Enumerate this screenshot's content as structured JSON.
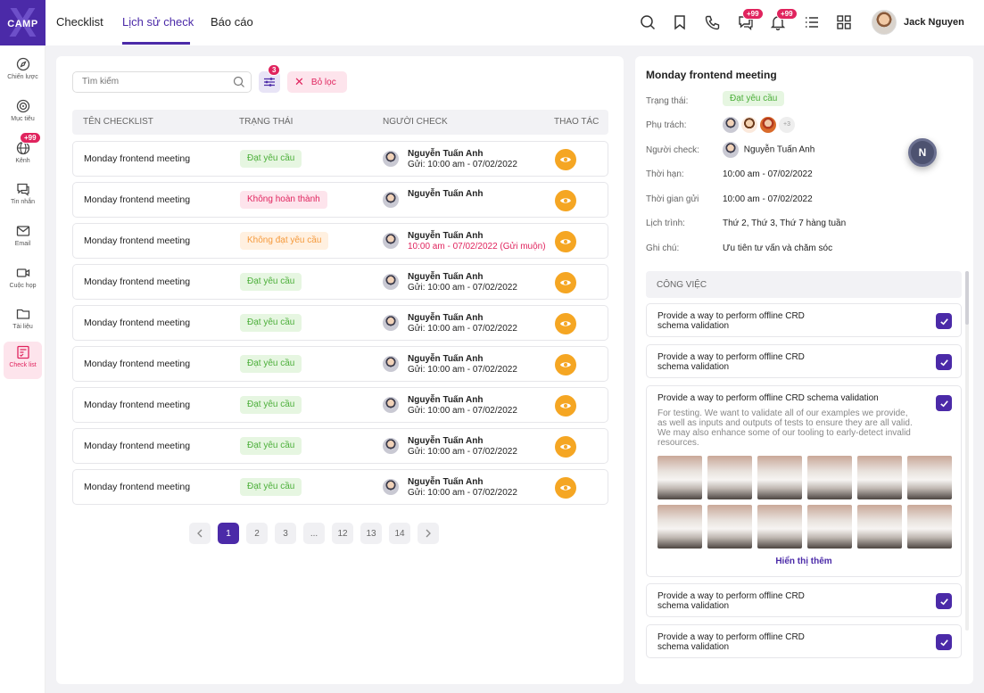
{
  "brand": {
    "logo_top": "CAMP",
    "logo_x": "X"
  },
  "sidebar": {
    "items": [
      {
        "label": "Chiến lược",
        "icon": "compass-icon"
      },
      {
        "label": "Mục tiêu",
        "icon": "target-icon"
      },
      {
        "label": "Kênh",
        "icon": "globe-icon",
        "badge": "+99"
      },
      {
        "label": "Tin nhắn",
        "icon": "chat-icon"
      },
      {
        "label": "Email",
        "icon": "mail-icon"
      },
      {
        "label": "Cuộc họp",
        "icon": "video-icon"
      },
      {
        "label": "Tài liệu",
        "icon": "folder-icon"
      },
      {
        "label": "Check list",
        "icon": "checklist-icon",
        "active": true
      }
    ]
  },
  "header": {
    "tabs": [
      "Checklist",
      "Lịch sử check",
      "Báo cáo"
    ],
    "active_tab": 1,
    "message_badge": "+99",
    "notification_badge": "+99",
    "user_name": "Jack Nguyen"
  },
  "toolbar": {
    "search_placeholder": "Tìm kiếm",
    "filter_count": "3",
    "clear_label": "Bỏ lọc"
  },
  "table": {
    "columns": [
      "TÊN CHECKLIST",
      "TRẠNG THÁI",
      "NGƯỜI CHECK",
      "THAO TÁC"
    ],
    "rows": [
      {
        "name": "Monday frontend meeting",
        "status": "Đạt yêu cầu",
        "checker": "Nguyễn Tuấn Anh",
        "sent": "Gửi: 10:00 am - 07/02/2022"
      },
      {
        "name": "Monday frontend meeting",
        "status": "Không hoàn thành",
        "checker": "Nguyễn Tuấn Anh",
        "sent": ""
      },
      {
        "name": "Monday frontend meeting",
        "status": "Không đạt yêu cầu",
        "checker": "Nguyễn Tuấn Anh",
        "sent": "10:00 am - 07/02/2022 (Gửi muộn)"
      },
      {
        "name": "Monday frontend meeting",
        "status": "Đạt yêu cầu",
        "checker": "Nguyễn Tuấn Anh",
        "sent": "Gửi: 10:00 am - 07/02/2022"
      },
      {
        "name": "Monday frontend meeting",
        "status": "Đạt yêu cầu",
        "checker": "Nguyễn Tuấn Anh",
        "sent": "Gửi: 10:00 am - 07/02/2022"
      },
      {
        "name": "Monday frontend meeting",
        "status": "Đạt yêu cầu",
        "checker": "Nguyễn Tuấn Anh",
        "sent": "Gửi: 10:00 am - 07/02/2022"
      },
      {
        "name": "Monday frontend meeting",
        "status": "Đạt yêu cầu",
        "checker": "Nguyễn Tuấn Anh",
        "sent": "Gửi: 10:00 am - 07/02/2022"
      },
      {
        "name": "Monday frontend meeting",
        "status": "Đạt yêu cầu",
        "checker": "Nguyễn Tuấn Anh",
        "sent": "Gửi: 10:00 am - 07/02/2022"
      },
      {
        "name": "Monday frontend meeting",
        "status": "Đạt yêu cầu",
        "checker": "Nguyễn Tuấn Anh",
        "sent": "Gửi: 10:00 am - 07/02/2022"
      }
    ]
  },
  "pagination": {
    "pages": [
      "1",
      "2",
      "3",
      "...",
      "12",
      "13",
      "14"
    ],
    "current": "1"
  },
  "detail": {
    "title": "Monday frontend meeting",
    "labels": {
      "status": "Trạng thái:",
      "owner": "Phụ trách:",
      "checker": "Người check:",
      "deadline": "Thời hạn:",
      "sent_time": "Thời gian gửi",
      "schedule": "Lịch trình:",
      "note": "Ghi chú:"
    },
    "status": "Đạt yêu cầu",
    "owners_more": "+3",
    "checker": "Nguyễn Tuấn Anh",
    "deadline": "10:00 am - 07/02/2022",
    "sent_time": "10:00 am - 07/02/2022",
    "schedule": "Thứ 2, Thứ 3, Thứ 7 hàng tuần",
    "note": "Ưu tiên tư vấn và chăm sóc",
    "floating_initial": "N",
    "tasks_header": "CÔNG VIỆC",
    "tasks": [
      {
        "title": "Provide a way to perform offline CRD schema validation"
      },
      {
        "title": "Provide a way to perform offline CRD schema validation"
      },
      {
        "title": "Provide a way to perform offline CRD schema validation",
        "description": "For testing. We want to validate all of our examples we provide, as well as inputs and outputs of tests to ensure they are all valid. We may also enhance some of our tooling to early-detect invalid resources.",
        "show_more": "Hiển thị thêm"
      },
      {
        "title": "Provide a way to perform offline CRD schema validation"
      },
      {
        "title": "Provide a way to perform offline CRD schema validation"
      }
    ]
  },
  "colors": {
    "primary": "#4b2aa8",
    "danger": "#e0245e",
    "success": "#4caf3a",
    "warning": "#f59a3c",
    "action": "#f5a623"
  }
}
